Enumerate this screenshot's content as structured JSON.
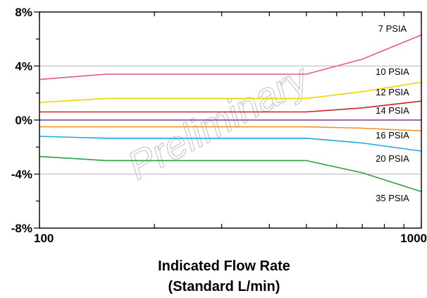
{
  "chart_data": {
    "type": "line",
    "x_scale": "log",
    "xlim": [
      100,
      1000
    ],
    "ylim": [
      -8,
      8
    ],
    "grid": "horizontal",
    "x_tick_labels": [
      "100",
      "1000"
    ],
    "y_tick_labels": [
      "8%",
      "4%",
      "0%",
      "-4%",
      "-8%"
    ],
    "y_tick_values": [
      8,
      4,
      0,
      -4,
      -8
    ],
    "xlabel_line1": "Indicated Flow Rate",
    "xlabel_line2": "(Standard L/min)",
    "watermark": "Preliminary",
    "series": [
      {
        "name": "7 PSIA",
        "color": "#e8559a",
        "x": [
          100,
          150,
          500,
          700,
          1000
        ],
        "y": [
          3.0,
          3.4,
          3.4,
          4.5,
          6.3
        ]
      },
      {
        "name": "10 PSIA",
        "color": "#f2d400",
        "x": [
          100,
          150,
          500,
          700,
          1000
        ],
        "y": [
          1.3,
          1.6,
          1.6,
          2.1,
          2.8
        ]
      },
      {
        "name": "12 PSIA",
        "color": "#cc1f2f",
        "x": [
          100,
          500,
          700,
          1000
        ],
        "y": [
          0.6,
          0.6,
          0.9,
          1.4
        ]
      },
      {
        "name": "14 PSIA",
        "color": "#7a3b8c",
        "x": [
          100,
          1000
        ],
        "y": [
          0.0,
          0.0
        ]
      },
      {
        "name": "16 PSIA",
        "color": "#f29222",
        "x": [
          100,
          500,
          700,
          1000
        ],
        "y": [
          -0.5,
          -0.5,
          -0.6,
          -0.8
        ]
      },
      {
        "name": "20 PSIA",
        "color": "#1ea8e0",
        "x": [
          100,
          150,
          500,
          700,
          1000
        ],
        "y": [
          -1.2,
          -1.35,
          -1.35,
          -1.7,
          -2.3
        ]
      },
      {
        "name": "35 PSIA",
        "color": "#2e9e3e",
        "x": [
          100,
          150,
          500,
          700,
          1000
        ],
        "y": [
          -2.7,
          -3.0,
          -3.0,
          -3.9,
          -5.3
        ]
      }
    ]
  }
}
